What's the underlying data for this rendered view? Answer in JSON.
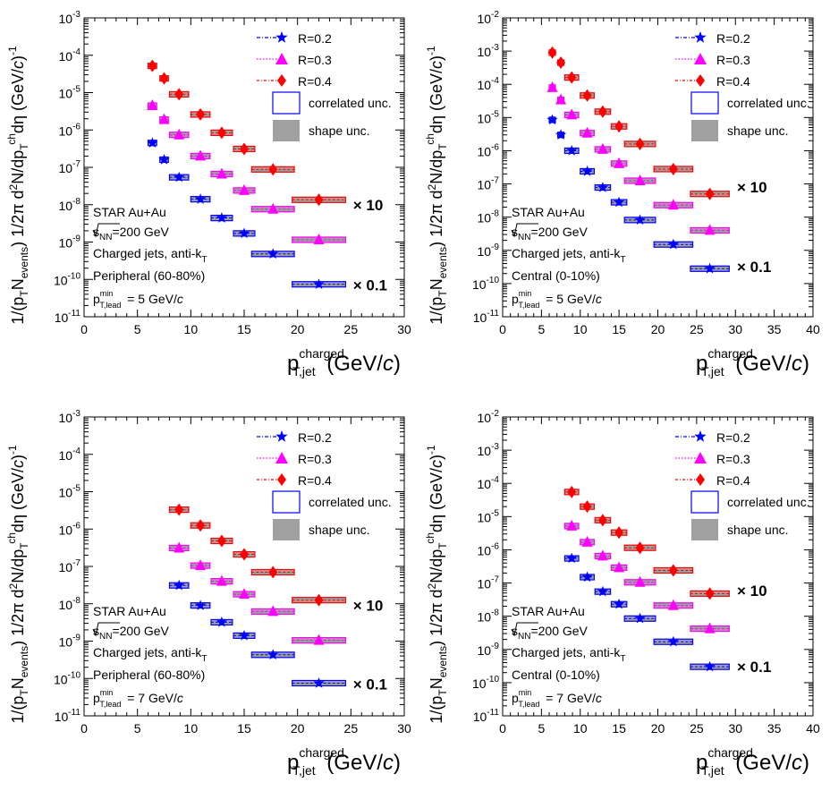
{
  "figure": {
    "xlabel_main": "p",
    "xlabel_sup": "charged",
    "xlabel_sub": "T,jet",
    "xlabel_unit": "(GeV/c)",
    "ylabel": "1/(p_T N_events) 1/2π d²N/dp_T^ch dη (GeV/c)^-1",
    "legend": {
      "entries": [
        "R=0.2",
        "R=0.3",
        "R=0.4"
      ],
      "correlated": "correlated unc.",
      "shape": "shape unc."
    },
    "scale_labels": [
      "× 10",
      "× 0.1"
    ],
    "colors": {
      "R02": "#0000ff",
      "R03": "#ff00ff",
      "R04": "#ff0000",
      "shape": "#a0a0a0"
    }
  },
  "chart_data": [
    {
      "type": "scatter",
      "panel": "top-left",
      "log_y": true,
      "xlim": [
        0,
        30
      ],
      "ylim": [
        1e-11,
        0.001
      ],
      "xticks": [
        "0",
        "5",
        "10",
        "15",
        "20",
        "25",
        "30"
      ],
      "yticks": [
        "10^-11",
        "10^-10",
        "10^-9",
        "10^-8",
        "10^-7",
        "10^-6",
        "10^-5",
        "10^-4",
        "10^-3"
      ],
      "annotations": [
        "STAR Au+Au",
        "√s_NN=200 GeV",
        "Charged jets, anti-k_T",
        "Peripheral (60-80%)",
        "p_T,lead^min = 5 GeV/c"
      ],
      "series": [
        {
          "name": "R=0.2",
          "marker": "star",
          "x": [
            6.4,
            7.5,
            8.9,
            10.9,
            12.9,
            15.0,
            17.7,
            22.0
          ],
          "y": [
            4.5e-07,
            1.6e-07,
            5.4e-08,
            1.4e-08,
            4.4e-09,
            1.7e-09,
            4.8e-10,
            7.4e-11
          ],
          "halfwidth": [
            0.4,
            0.4,
            0.9,
            0.9,
            1.0,
            1.0,
            2.0,
            2.5
          ]
        },
        {
          "name": "R=0.3",
          "marker": "triangle",
          "x": [
            6.4,
            7.5,
            8.9,
            10.9,
            12.9,
            15.0,
            17.7,
            22.0
          ],
          "y": [
            4.5e-06,
            1.9e-06,
            7.4e-07,
            2e-07,
            6.6e-08,
            2.4e-08,
            7.6e-09,
            1.15e-09
          ],
          "halfwidth": [
            0.4,
            0.4,
            0.9,
            0.9,
            1.0,
            1.0,
            2.0,
            2.5
          ]
        },
        {
          "name": "R=0.4",
          "marker": "diamond",
          "x": [
            6.4,
            7.5,
            8.9,
            10.9,
            12.9,
            15.0,
            17.7,
            22.0
          ],
          "y": [
            5.2e-05,
            2.4e-05,
            9e-06,
            2.6e-06,
            8.4e-07,
            3.1e-07,
            8.8e-08,
            1.35e-08
          ],
          "halfwidth": [
            0.4,
            0.4,
            0.9,
            0.9,
            1.0,
            1.0,
            2.0,
            2.5
          ]
        }
      ],
      "scale_notes": [
        {
          "label": "× 10",
          "y": 1e-08
        },
        {
          "label": "× 0.1",
          "y": 7e-11
        }
      ]
    },
    {
      "type": "scatter",
      "panel": "top-right",
      "log_y": true,
      "xlim": [
        0,
        40
      ],
      "ylim": [
        1e-11,
        0.01
      ],
      "xticks": [
        "0",
        "5",
        "10",
        "15",
        "20",
        "25",
        "30",
        "35",
        "40"
      ],
      "yticks": [
        "10^-11",
        "10^-10",
        "10^-9",
        "10^-8",
        "10^-7",
        "10^-6",
        "10^-5",
        "10^-4",
        "10^-3",
        "10^-2"
      ],
      "annotations": [
        "STAR Au+Au",
        "√s_NN=200 GeV",
        "Charged jets, anti-k_T",
        "Central (0-10%)",
        "p_T,lead^min = 5 GeV/c"
      ],
      "series": [
        {
          "name": "R=0.2",
          "marker": "star",
          "x": [
            6.4,
            7.5,
            8.9,
            10.9,
            12.9,
            15.0,
            17.7,
            22.0,
            26.7
          ],
          "y": [
            8.5e-06,
            3e-06,
            1e-06,
            2.4e-07,
            7.8e-08,
            2.8e-08,
            8.2e-09,
            1.5e-09,
            2.8e-10
          ],
          "halfwidth": [
            0.4,
            0.4,
            0.9,
            0.9,
            1.0,
            1.0,
            2.0,
            2.5,
            2.5
          ]
        },
        {
          "name": "R=0.3",
          "marker": "triangle",
          "x": [
            6.4,
            7.5,
            8.9,
            10.9,
            12.9,
            15.0,
            17.7,
            22.0,
            26.7
          ],
          "y": [
            8e-05,
            3.4e-05,
            1.2e-05,
            3.4e-06,
            1.1e-06,
            4.1e-07,
            1.25e-07,
            2.3e-08,
            4e-09
          ],
          "halfwidth": [
            0.4,
            0.4,
            0.9,
            0.9,
            1.0,
            1.0,
            2.0,
            2.5,
            2.5
          ]
        },
        {
          "name": "R=0.4",
          "marker": "diamond",
          "x": [
            6.4,
            7.5,
            8.9,
            10.9,
            12.9,
            15.0,
            17.7,
            22.0,
            26.7
          ],
          "y": [
            0.0009,
            0.00045,
            0.00016,
            4.6e-05,
            1.5e-05,
            5.4e-06,
            1.6e-06,
            2.8e-07,
            5e-08
          ],
          "halfwidth": [
            0.4,
            0.4,
            0.9,
            0.9,
            1.0,
            1.0,
            2.0,
            2.5,
            2.5
          ]
        }
      ],
      "scale_notes": [
        {
          "label": "× 10",
          "y": 8e-08
        },
        {
          "label": "× 0.1",
          "y": 3.2e-10
        }
      ]
    },
    {
      "type": "scatter",
      "panel": "bottom-left",
      "log_y": true,
      "xlim": [
        0,
        30
      ],
      "ylim": [
        1e-11,
        0.001
      ],
      "xticks": [
        "0",
        "5",
        "10",
        "15",
        "20",
        "25",
        "30"
      ],
      "yticks": [
        "10^-11",
        "10^-10",
        "10^-9",
        "10^-8",
        "10^-7",
        "10^-6",
        "10^-5",
        "10^-4",
        "10^-3"
      ],
      "annotations": [
        "STAR Au+Au",
        "√s_NN=200 GeV",
        "Charged jets, anti-k_T",
        "Peripheral (60-80%)",
        "p_T,lead^min = 7 GeV/c"
      ],
      "series": [
        {
          "name": "R=0.2",
          "marker": "star",
          "x": [
            8.9,
            10.9,
            12.9,
            15.0,
            17.7,
            22.0
          ],
          "y": [
            3.1e-08,
            9e-09,
            3.2e-09,
            1.4e-09,
            4.3e-10,
            7.5e-11
          ],
          "halfwidth": [
            0.9,
            0.9,
            1.0,
            1.0,
            2.0,
            2.5
          ]
        },
        {
          "name": "R=0.3",
          "marker": "triangle",
          "x": [
            8.9,
            10.9,
            12.9,
            15.0,
            17.7,
            22.0
          ],
          "y": [
            3.1e-07,
            1.05e-07,
            4e-08,
            1.8e-08,
            6.2e-09,
            1.05e-09
          ],
          "halfwidth": [
            0.9,
            0.9,
            1.0,
            1.0,
            2.0,
            2.5
          ]
        },
        {
          "name": "R=0.4",
          "marker": "diamond",
          "x": [
            8.9,
            10.9,
            12.9,
            15.0,
            17.7,
            22.0
          ],
          "y": [
            3.3e-06,
            1.25e-06,
            4.8e-07,
            2.1e-07,
            7e-08,
            1.25e-08
          ],
          "halfwidth": [
            0.9,
            0.9,
            1.0,
            1.0,
            2.0,
            2.5
          ]
        }
      ],
      "scale_notes": [
        {
          "label": "× 10",
          "y": 9e-09
        },
        {
          "label": "× 0.1",
          "y": 7e-11
        }
      ]
    },
    {
      "type": "scatter",
      "panel": "bottom-right",
      "log_y": true,
      "xlim": [
        0,
        40
      ],
      "ylim": [
        1e-11,
        0.01
      ],
      "xticks": [
        "0",
        "5",
        "10",
        "15",
        "20",
        "25",
        "30",
        "35",
        "40"
      ],
      "yticks": [
        "10^-11",
        "10^-10",
        "10^-9",
        "10^-8",
        "10^-7",
        "10^-6",
        "10^-5",
        "10^-4",
        "10^-3",
        "10^-2"
      ],
      "annotations": [
        "STAR Au+Au",
        "√s_NN=200 GeV",
        "Charged jets, anti-k_T",
        "Central (0-10%)",
        "p_T,lead^min = 7 GeV/c"
      ],
      "series": [
        {
          "name": "R=0.2",
          "marker": "star",
          "x": [
            8.9,
            10.9,
            12.9,
            15.0,
            17.7,
            22.0,
            26.7
          ],
          "y": [
            5.5e-07,
            1.5e-07,
            5.5e-08,
            2.3e-08,
            8.5e-09,
            1.7e-09,
            3e-10
          ],
          "halfwidth": [
            0.9,
            0.9,
            1.0,
            1.0,
            2.0,
            2.5,
            2.5
          ]
        },
        {
          "name": "R=0.3",
          "marker": "triangle",
          "x": [
            8.9,
            10.9,
            12.9,
            15.0,
            17.7,
            22.0,
            26.7
          ],
          "y": [
            5.2e-06,
            1.7e-06,
            6.5e-07,
            2.9e-07,
            1.05e-07,
            2.1e-08,
            4.2e-09
          ],
          "halfwidth": [
            0.9,
            0.9,
            1.0,
            1.0,
            2.0,
            2.5,
            2.5
          ]
        },
        {
          "name": "R=0.4",
          "marker": "diamond",
          "x": [
            8.9,
            10.9,
            12.9,
            15.0,
            17.7,
            22.0,
            26.7
          ],
          "y": [
            5.5e-05,
            2e-05,
            7.8e-06,
            3.3e-06,
            1.15e-06,
            2.4e-07,
            4.8e-08
          ],
          "halfwidth": [
            0.9,
            0.9,
            1.0,
            1.0,
            2.0,
            2.5,
            2.5
          ]
        }
      ],
      "scale_notes": [
        {
          "label": "× 10",
          "y": 6e-08
        },
        {
          "label": "× 0.1",
          "y": 3e-10
        }
      ]
    }
  ]
}
